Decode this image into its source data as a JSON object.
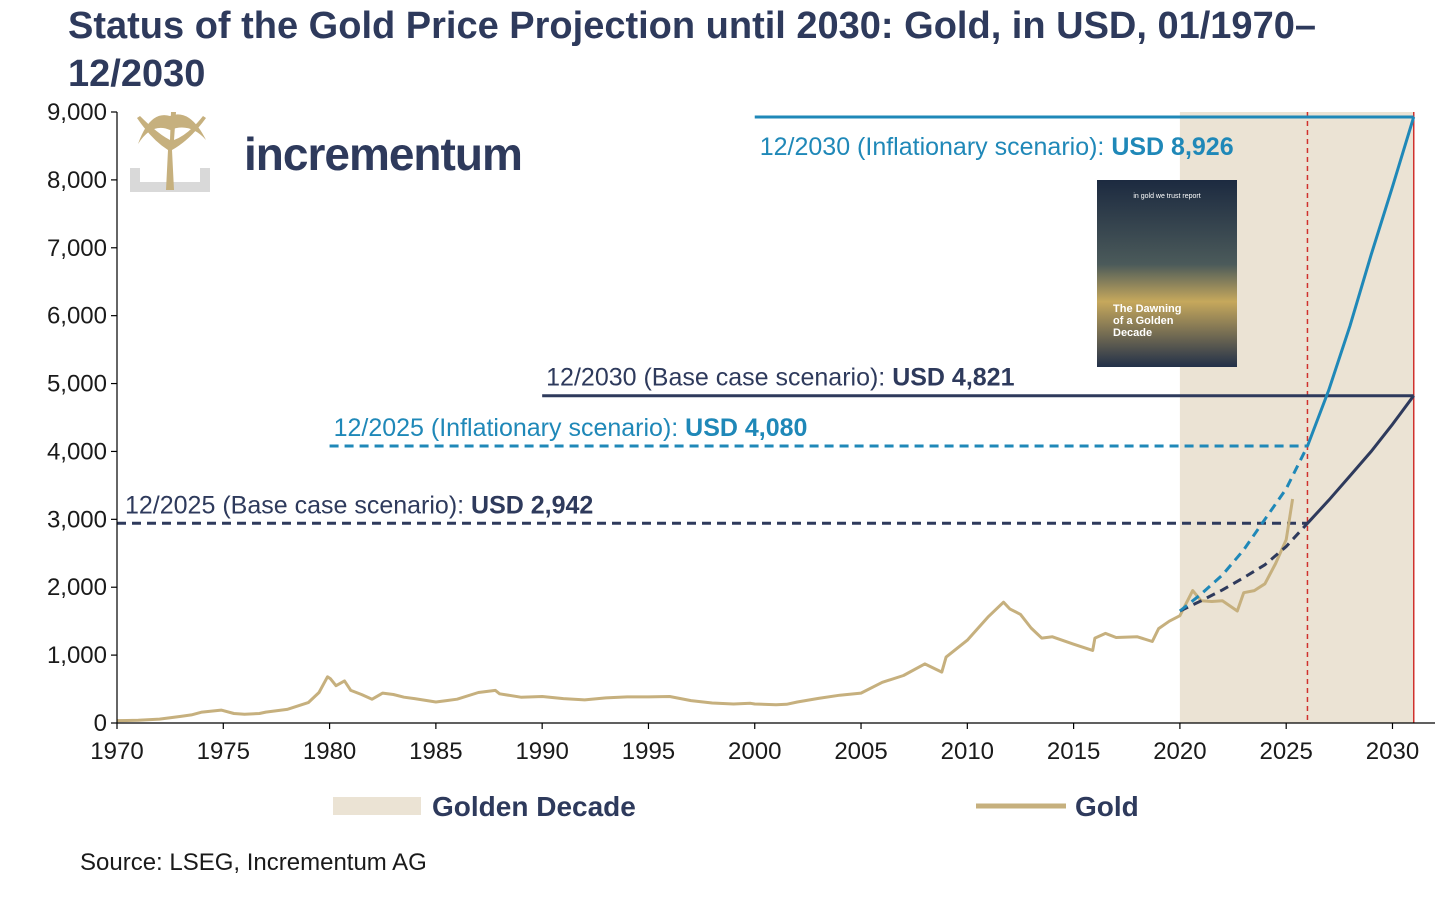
{
  "title": "Status of the Gold Price Projection until 2030: Gold, in USD, 01/1970–12/2030",
  "source": "Source: LSEG, Incrementum AG",
  "logo": {
    "text": "incrementum",
    "icon": "tree-icon"
  },
  "report_cover": {
    "title_lines": [
      "The Dawning",
      "of a Golden",
      "Decade"
    ],
    "brand": "in gold we trust report"
  },
  "legend": {
    "golden_decade": "Golden Decade",
    "gold": "Gold"
  },
  "colors": {
    "gold": "#c6b07e",
    "golden_decade": "#ebe3d4",
    "base_case": "#2e3a5c",
    "inflationary": "#1f88b8",
    "marker": "#d0312d"
  },
  "chart_data": {
    "type": "line",
    "xlim": [
      1970,
      2032
    ],
    "ylim": [
      0,
      9000
    ],
    "x_ticks": [
      "1970",
      "1975",
      "1980",
      "1985",
      "1990",
      "1995",
      "2000",
      "2005",
      "2010",
      "2015",
      "2020",
      "2025",
      "2030"
    ],
    "y_ticks": [
      "0",
      "1,000",
      "2,000",
      "3,000",
      "4,000",
      "5,000",
      "6,000",
      "7,000",
      "8,000",
      "9,000"
    ],
    "golden_decade": {
      "start": 2020,
      "end": 2031
    },
    "marker_lines": [
      2026,
      2031
    ],
    "series": [
      {
        "name": "Gold",
        "x": [
          1970,
          1971,
          1972,
          1973,
          1973.5,
          1974,
          1974.9,
          1975.5,
          1976,
          1976.7,
          1977,
          1978,
          1979,
          1979.5,
          1979.9,
          1980.05,
          1980.3,
          1980.7,
          1981,
          1981.5,
          1982,
          1982.5,
          1983,
          1983.5,
          1984,
          1985,
          1985.5,
          1986,
          1987,
          1987.8,
          1988,
          1989,
          1990,
          1991,
          1992,
          1993,
          1994,
          1995,
          1996,
          1997,
          1998,
          1999,
          1999.8,
          2000,
          2001,
          2001.5,
          2002,
          2003,
          2004,
          2005,
          2006,
          2007,
          2008,
          2008.8,
          2009,
          2010,
          2011,
          2011.7,
          2012,
          2012.5,
          2013,
          2013.5,
          2014,
          2015,
          2015.9,
          2016,
          2016.5,
          2017,
          2018,
          2018.7,
          2019,
          2019.5,
          2020,
          2020.6,
          2021,
          2021.5,
          2022,
          2022.7,
          2023,
          2023.5,
          2024,
          2024.5,
          2025,
          2025.3
        ],
        "values": [
          35,
          40,
          58,
          97,
          120,
          160,
          190,
          140,
          130,
          140,
          160,
          200,
          300,
          450,
          680,
          650,
          550,
          620,
          480,
          420,
          350,
          440,
          420,
          380,
          360,
          310,
          330,
          350,
          450,
          480,
          430,
          380,
          390,
          360,
          340,
          370,
          385,
          385,
          390,
          330,
          295,
          280,
          290,
          280,
          270,
          275,
          310,
          363,
          410,
          440,
          600,
          700,
          870,
          750,
          970,
          1220,
          1570,
          1780,
          1680,
          1600,
          1400,
          1250,
          1270,
          1160,
          1070,
          1250,
          1320,
          1260,
          1270,
          1200,
          1390,
          1500,
          1580,
          1950,
          1800,
          1790,
          1800,
          1650,
          1920,
          1950,
          2050,
          2350,
          2700,
          3300
        ]
      },
      {
        "name": "Base case projection",
        "x": [
          2020,
          2021,
          2022,
          2023,
          2024,
          2025,
          2026,
          2027,
          2028,
          2029,
          2030,
          2031
        ],
        "values": [
          1650,
          1800,
          1960,
          2140,
          2330,
          2600,
          2942,
          3280,
          3640,
          4000,
          4400,
          4821
        ]
      },
      {
        "name": "Inflationary projection",
        "x": [
          2020,
          2021,
          2022,
          2023,
          2024,
          2025,
          2026,
          2027,
          2028,
          2029,
          2030,
          2031
        ],
        "values": [
          1650,
          1900,
          2180,
          2550,
          3000,
          3450,
          4080,
          4900,
          5850,
          6900,
          7900,
          8926
        ]
      }
    ],
    "annotations": [
      {
        "label": "12/2030 (Inflationary scenario): ",
        "value": "USD 8,926",
        "y": 8926,
        "x_start": 2000,
        "x_end": 2031,
        "style": "solid",
        "series": "inflationary"
      },
      {
        "label": "12/2030 (Base case scenario): ",
        "value": "USD 4,821",
        "y": 4821,
        "x_start": 1990,
        "x_end": 2031,
        "style": "solid",
        "series": "base_case"
      },
      {
        "label": "12/2025 (Inflationary scenario): ",
        "value": "USD 4,080",
        "y": 4080,
        "x_start": 1980,
        "x_end": 2026,
        "style": "dashed",
        "series": "inflationary"
      },
      {
        "label": "12/2025 (Base case scenario): ",
        "value": "USD 2,942",
        "y": 2942,
        "x_start": 1970,
        "x_end": 2026,
        "style": "dashed",
        "series": "base_case"
      }
    ]
  }
}
